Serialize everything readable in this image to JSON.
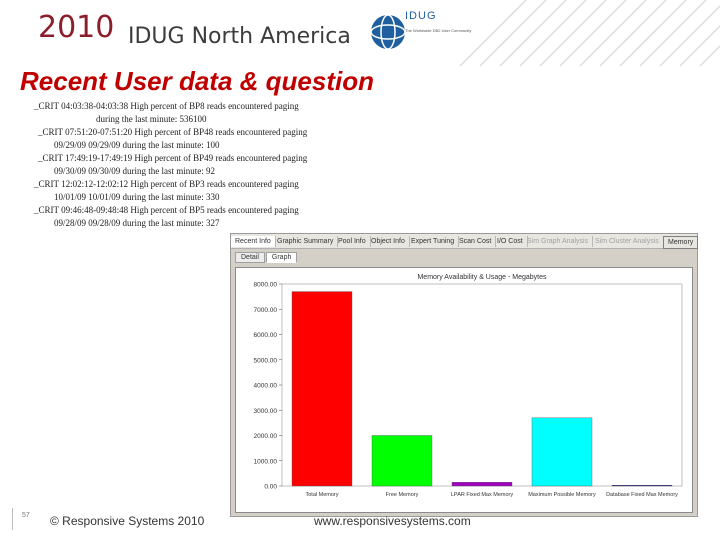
{
  "header": {
    "year": "2010",
    "conference": "IDUG North America",
    "logo_text": "IDUG",
    "logo_tagline": "The Worldwide DB2 User Community"
  },
  "slide": {
    "title": "Recent User data  &  question"
  },
  "log_lines": [
    "_CRIT 04:03:38-04:03:38 High percent of BP8 reads encountered paging",
    "during the last minute: 536100",
    "_CRIT 07:51:20-07:51:20 High percent of BP48 reads encountered paging",
    "09/29/09 09/29/09 during the last minute: 100",
    "_CRIT 17:49:19-17:49:19 High percent of BP49 reads encountered paging",
    "09/30/09 09/30/09 during the last minute: 92",
    "_CRIT 12:02:12-12:02:12 High percent of BP3 reads encountered paging",
    "10/01/09 10/01/09 during the last minute: 330",
    "_CRIT 09:46:48-09:48:48 High percent of BP5 reads encountered paging",
    "09/28/09 09/28/09 during the last minute: 327"
  ],
  "app": {
    "tabs": [
      "Recent Info",
      "Graphic Summary",
      "Pool Info",
      "Object Info",
      "Expert Tuning",
      "Scan Cost",
      "I/O Cost",
      "Sim Graph Analysis",
      "Sim Cluster Analysis",
      "Memory"
    ],
    "subtabs": [
      "Detail",
      "Graph"
    ]
  },
  "chart_data": {
    "type": "bar",
    "title": "Memory Availability & Usage - Megabytes",
    "categories": [
      "Total Memory",
      "Free Memory",
      "LPAR Fixed Max Memory",
      "Maximum Possible Memory",
      "Database Fixed Max Memory"
    ],
    "values": [
      7700,
      2000,
      150,
      2700,
      30
    ],
    "colors": [
      "#ff0000",
      "#00ff00",
      "#a000c0",
      "#00ffff",
      "#0000a0"
    ],
    "yticks": [
      "8000.00",
      "7000.00",
      "6000.00",
      "5000.00",
      "4000.00",
      "3000.00",
      "2000.00",
      "1000.00",
      "0.00"
    ],
    "ylim": [
      0,
      8000
    ],
    "xlabel": "",
    "ylabel": ""
  },
  "footer": {
    "page": "57",
    "copyright": "© Responsive Systems 2010",
    "url": "www.responsivesystems.com"
  }
}
